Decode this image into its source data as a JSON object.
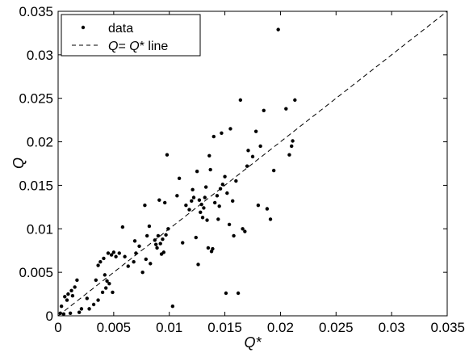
{
  "chart_data": {
    "type": "scatter",
    "xlabel": "Q*",
    "ylabel": "Q",
    "xlim": [
      0,
      0.035
    ],
    "ylim": [
      0,
      0.035
    ],
    "xticks": [
      0,
      0.005,
      0.01,
      0.015,
      0.02,
      0.025,
      0.03,
      0.035
    ],
    "yticks": [
      0,
      0.005,
      0.01,
      0.015,
      0.02,
      0.025,
      0.03,
      0.035
    ],
    "tick_labels_x": [
      "0",
      "0.005",
      "0.01",
      "0.015",
      "0.02",
      "0.025",
      "0.03",
      "0.035"
    ],
    "tick_labels_y": [
      "0",
      "0.005",
      "0.01",
      "0.015",
      "0.02",
      "0.025",
      "0.03",
      "0.035"
    ],
    "grid": false,
    "legend": {
      "position": "top-left",
      "entries": [
        {
          "label": "data",
          "style": "dots"
        },
        {
          "label_parts": [
            "Q",
            "= ",
            "Q",
            "*",
            " line"
          ],
          "style": "dashed"
        }
      ]
    },
    "reference_line": {
      "label": "Q= Q* line",
      "from": [
        0,
        0
      ],
      "to": [
        0.035,
        0.035
      ],
      "style": "dashed"
    },
    "series": [
      {
        "name": "data",
        "points": [
          [
            0.0002,
            0.0003
          ],
          [
            0.0003,
            0.0011
          ],
          [
            0.0005,
            0.0002
          ],
          [
            0.0006,
            0.0022
          ],
          [
            0.0008,
            0.0018
          ],
          [
            0.0009,
            0.0025
          ],
          [
            0.0011,
            0.0003
          ],
          [
            0.0012,
            0.0029
          ],
          [
            0.0013,
            0.0023
          ],
          [
            0.0015,
            0.0033
          ],
          [
            0.0017,
            0.0041
          ],
          [
            0.0019,
            0.0004
          ],
          [
            0.0021,
            0.0008
          ],
          [
            0.0026,
            0.002
          ],
          [
            0.0028,
            0.0008
          ],
          [
            0.0032,
            0.0013
          ],
          [
            0.0034,
            0.0041
          ],
          [
            0.0036,
            0.0018
          ],
          [
            0.0036,
            0.0058
          ],
          [
            0.0038,
            0.0062
          ],
          [
            0.004,
            0.0027
          ],
          [
            0.0041,
            0.0066
          ],
          [
            0.0042,
            0.0047
          ],
          [
            0.0043,
            0.0032
          ],
          [
            0.0044,
            0.004
          ],
          [
            0.0045,
            0.0072
          ],
          [
            0.0046,
            0.0037
          ],
          [
            0.0048,
            0.007
          ],
          [
            0.0049,
            0.0027
          ],
          [
            0.005,
            0.0073
          ],
          [
            0.0052,
            0.0068
          ],
          [
            0.0055,
            0.0072
          ],
          [
            0.0058,
            0.0102
          ],
          [
            0.006,
            0.0068
          ],
          [
            0.0063,
            0.0057
          ],
          [
            0.0068,
            0.0062
          ],
          [
            0.0069,
            0.0086
          ],
          [
            0.007,
            0.0072
          ],
          [
            0.0073,
            0.008
          ],
          [
            0.0076,
            0.005
          ],
          [
            0.0078,
            0.0127
          ],
          [
            0.0079,
            0.0065
          ],
          [
            0.008,
            0.0092
          ],
          [
            0.0082,
            0.0103
          ],
          [
            0.0083,
            0.006
          ],
          [
            0.0087,
            0.0087
          ],
          [
            0.0088,
            0.0082
          ],
          [
            0.0089,
            0.0078
          ],
          [
            0.009,
            0.0092
          ],
          [
            0.0091,
            0.0133
          ],
          [
            0.0092,
            0.0083
          ],
          [
            0.0093,
            0.0071
          ],
          [
            0.0094,
            0.0088
          ],
          [
            0.0095,
            0.0073
          ],
          [
            0.0096,
            0.013
          ],
          [
            0.0097,
            0.0093
          ],
          [
            0.0098,
            0.0185
          ],
          [
            0.0099,
            0.01
          ],
          [
            0.0103,
            0.0011
          ],
          [
            0.0107,
            0.0138
          ],
          [
            0.0109,
            0.0158
          ],
          [
            0.0112,
            0.0084
          ],
          [
            0.0115,
            0.0127
          ],
          [
            0.0118,
            0.0122
          ],
          [
            0.012,
            0.0132
          ],
          [
            0.0121,
            0.0145
          ],
          [
            0.0122,
            0.0136
          ],
          [
            0.0124,
            0.009
          ],
          [
            0.0125,
            0.0166
          ],
          [
            0.0126,
            0.0059
          ],
          [
            0.0127,
            0.0133
          ],
          [
            0.0128,
            0.0119
          ],
          [
            0.0129,
            0.0128
          ],
          [
            0.013,
            0.0113
          ],
          [
            0.0131,
            0.0124
          ],
          [
            0.0132,
            0.0136
          ],
          [
            0.0133,
            0.0148
          ],
          [
            0.0134,
            0.011
          ],
          [
            0.0135,
            0.0078
          ],
          [
            0.0136,
            0.0184
          ],
          [
            0.0137,
            0.0168
          ],
          [
            0.0138,
            0.0074
          ],
          [
            0.0139,
            0.0077
          ],
          [
            0.014,
            0.0206
          ],
          [
            0.0141,
            0.013
          ],
          [
            0.0143,
            0.0138
          ],
          [
            0.0144,
            0.0111
          ],
          [
            0.0145,
            0.0126
          ],
          [
            0.0146,
            0.0146
          ],
          [
            0.0147,
            0.021
          ],
          [
            0.0148,
            0.0151
          ],
          [
            0.015,
            0.016
          ],
          [
            0.0151,
            0.0026
          ],
          [
            0.0152,
            0.0141
          ],
          [
            0.0154,
            0.0105
          ],
          [
            0.0155,
            0.0215
          ],
          [
            0.0157,
            0.0132
          ],
          [
            0.0158,
            0.0092
          ],
          [
            0.016,
            0.0155
          ],
          [
            0.0162,
            0.0026
          ],
          [
            0.0164,
            0.0248
          ],
          [
            0.0166,
            0.01
          ],
          [
            0.0168,
            0.0097
          ],
          [
            0.017,
            0.0172
          ],
          [
            0.0171,
            0.019
          ],
          [
            0.0175,
            0.0183
          ],
          [
            0.0178,
            0.0212
          ],
          [
            0.018,
            0.0127
          ],
          [
            0.0182,
            0.0195
          ],
          [
            0.0185,
            0.0236
          ],
          [
            0.0188,
            0.0123
          ],
          [
            0.0191,
            0.0111
          ],
          [
            0.0194,
            0.0167
          ],
          [
            0.0198,
            0.0329
          ],
          [
            0.0205,
            0.0238
          ],
          [
            0.0208,
            0.0185
          ],
          [
            0.021,
            0.0195
          ],
          [
            0.0211,
            0.0201
          ],
          [
            0.0213,
            0.0248
          ]
        ]
      }
    ]
  }
}
